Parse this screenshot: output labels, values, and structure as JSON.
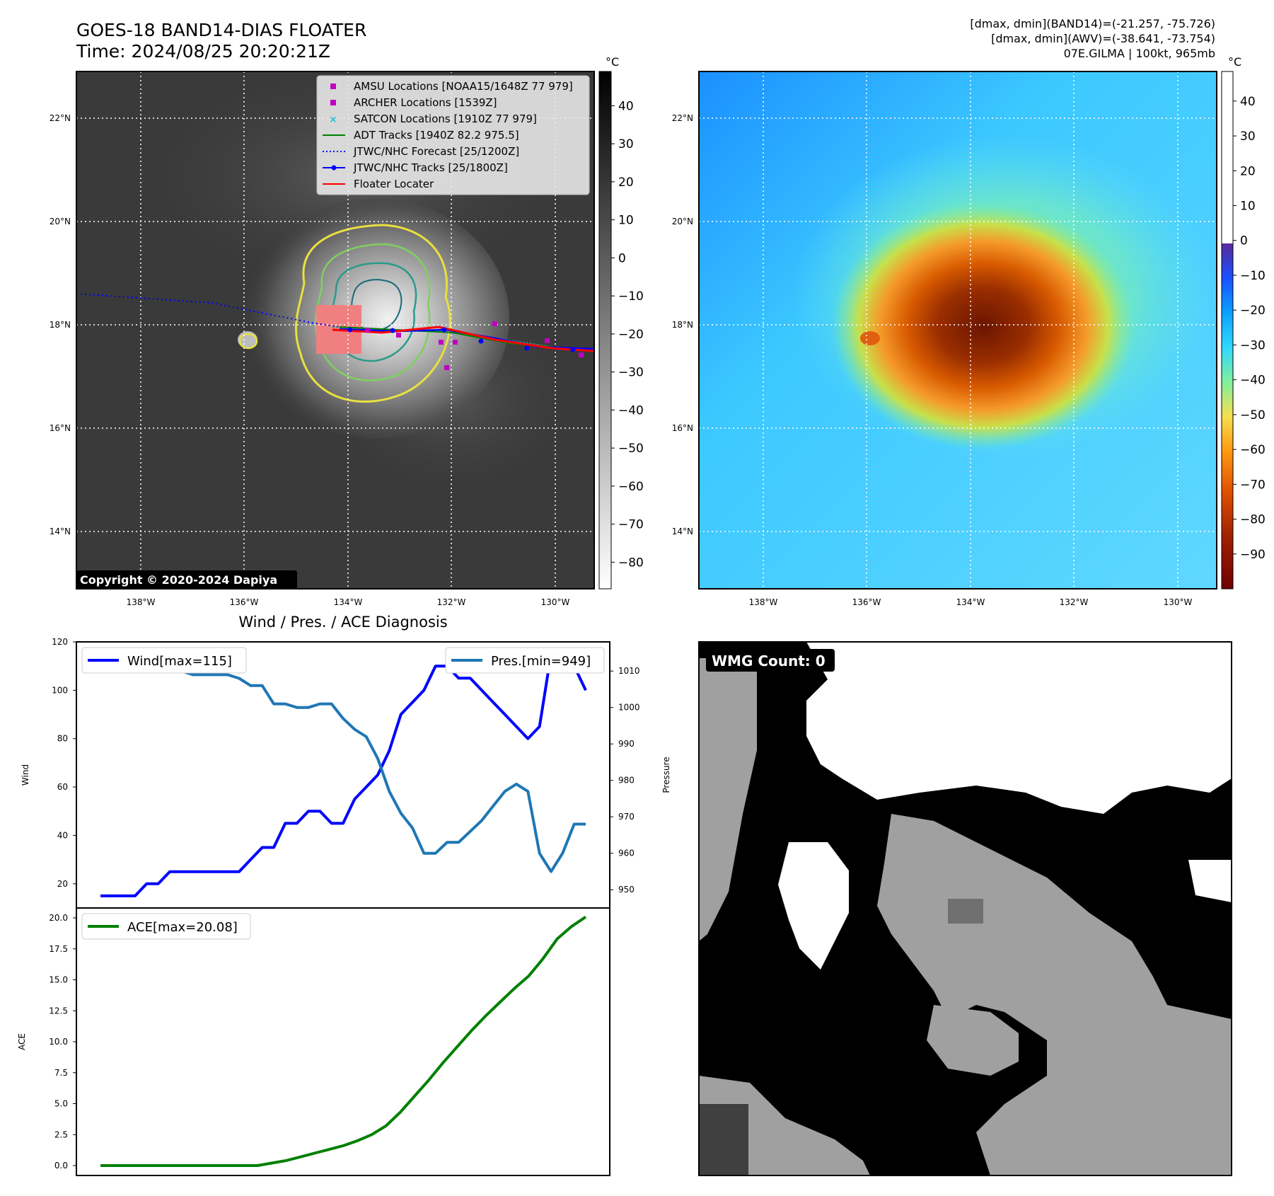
{
  "header": {
    "title_line1": "GOES-18 BAND14-DIAS FLOATER",
    "title_line2": "Time: 2024/08/25 20:20:21Z",
    "info_line1": "[dmax, dmin](BAND14)=(-21.257, -75.726)",
    "info_line2": "[dmax, dmin](AWV)=(-38.641, -73.754)",
    "info_line3": "07E.GILMA | 100kt, 965mb"
  },
  "map": {
    "lat_labels": [
      "22°N",
      "20°N",
      "18°N",
      "16°N",
      "14°N"
    ],
    "lon_labels": [
      "138°W",
      "136°W",
      "134°W",
      "132°W",
      "130°W"
    ],
    "copyright": "Copyright © 2020-2024 Dapiya",
    "legend": [
      {
        "label": "AMSU Locations [NOAA15/1648Z 77 979]",
        "color": "#c000c0",
        "marker": "square"
      },
      {
        "label": "ARCHER Locations [1539Z]",
        "color": "#c000c0",
        "marker": "square"
      },
      {
        "label": "SATCON Locations [1910Z 77 979]",
        "color": "#17becf",
        "marker": "x"
      },
      {
        "label": "ADT Tracks [1940Z 82.2 975.5]",
        "color": "#008000",
        "marker": "line"
      },
      {
        "label": "JTWC/NHC Forecast [25/1200Z]",
        "color": "#0000ff",
        "marker": "dotted"
      },
      {
        "label": "JTWC/NHC Tracks [25/1800Z]",
        "color": "#0000ff",
        "marker": "line-dot"
      },
      {
        "label": "Floater Locater",
        "color": "#ff0000",
        "marker": "line"
      }
    ]
  },
  "colorbar_ir": {
    "unit": "°C",
    "ticks": [
      "40",
      "30",
      "20",
      "10",
      "0",
      "−10",
      "−20",
      "−30",
      "−40",
      "−50",
      "−60",
      "−70",
      "−80"
    ]
  },
  "colorbar_awv": {
    "unit": "°C",
    "ticks": [
      "40",
      "30",
      "20",
      "10",
      "0",
      "−10",
      "−20",
      "−30",
      "−40",
      "−50",
      "−60",
      "−70",
      "−80",
      "−90"
    ]
  },
  "wmg": {
    "label": "WMG Count: 0"
  },
  "chart_data": [
    {
      "type": "line",
      "title": "Wind / Pres. / ACE Diagnosis",
      "ylabel": "Wind",
      "ylabel_right": "Pressure",
      "ylim": [
        10,
        120
      ],
      "ylim_right": [
        945,
        1018
      ],
      "yticks": [
        20,
        40,
        60,
        80,
        100,
        120
      ],
      "yticks_right": [
        950,
        960,
        970,
        980,
        990,
        1000,
        1010
      ],
      "series": [
        {
          "name": "Wind[max=115]",
          "axis": "left",
          "color": "#0000ff",
          "values": [
            15,
            15,
            15,
            15,
            20,
            20,
            25,
            25,
            25,
            25,
            25,
            25,
            25,
            30,
            35,
            35,
            45,
            45,
            50,
            50,
            45,
            45,
            55,
            60,
            65,
            75,
            90,
            95,
            100,
            110,
            110,
            105,
            105,
            100,
            95,
            90,
            85,
            80,
            85,
            115,
            115,
            110,
            100
          ]
        },
        {
          "name": "Pres.[min=949]",
          "axis": "right",
          "color": "#1f77b4",
          "values": [
            1016,
            1012,
            1011,
            1011,
            1010,
            1010,
            1010,
            1010,
            1009,
            1009,
            1009,
            1009,
            1008,
            1006,
            1006,
            1001,
            1001,
            1000,
            1000,
            1001,
            1001,
            997,
            994,
            992,
            986,
            977,
            971,
            967,
            960,
            960,
            963,
            963,
            966,
            969,
            973,
            977,
            979,
            977,
            960,
            955,
            960,
            968,
            968
          ]
        }
      ]
    },
    {
      "type": "line",
      "ylabel": "ACE",
      "ylim": [
        -0.8,
        20.8
      ],
      "yticks": [
        0.0,
        2.5,
        5.0,
        7.5,
        10.0,
        12.5,
        15.0,
        17.5,
        20.0
      ],
      "series": [
        {
          "name": "ACE[max=20.08]",
          "color": "#008000",
          "values": [
            0,
            0,
            0,
            0,
            0,
            0,
            0,
            0,
            0,
            0,
            0,
            0,
            0.2,
            0.4,
            0.7,
            1.0,
            1.3,
            1.6,
            2.0,
            2.5,
            3.2,
            4.3,
            5.6,
            6.9,
            8.3,
            9.6,
            10.9,
            12.1,
            13.2,
            14.3,
            15.3,
            16.7,
            18.3,
            19.3,
            20.08
          ]
        }
      ]
    }
  ]
}
